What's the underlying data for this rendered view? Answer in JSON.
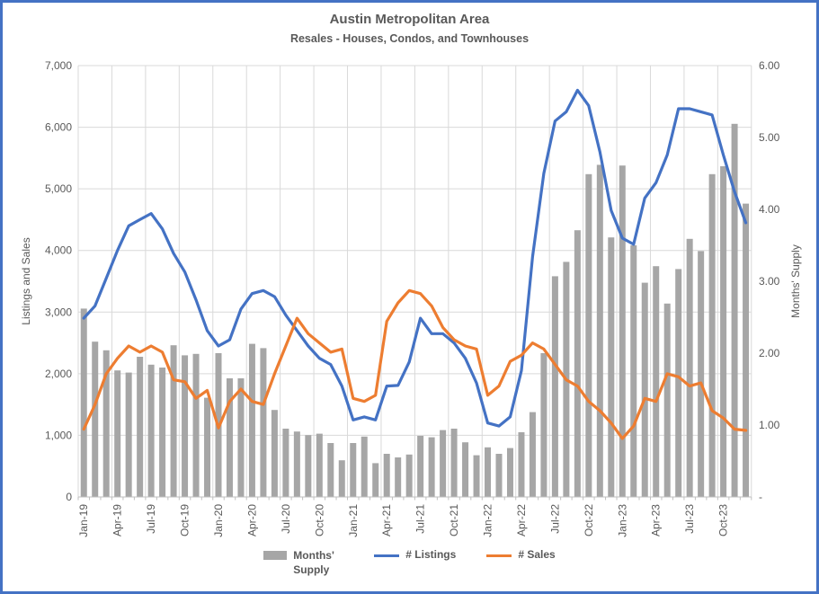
{
  "title": "Austin Metropolitan Area",
  "subtitle": "Resales - Houses, Condos, and Townhouses",
  "legend": {
    "months_supply": "Months' Supply",
    "listings": "# Listings",
    "sales": "# Sales"
  },
  "colors": {
    "bars": "#A6A6A6",
    "listings_line": "#4472C4",
    "sales_line": "#ED7D31",
    "grid": "#D9D9D9",
    "axis_line": "#BFBFBF",
    "text": "#595959",
    "frame_border": "#4472C4"
  },
  "chart_data": {
    "type": "combo bar + line, dual axis",
    "title": "Austin Metropolitan Area",
    "subtitle": "Resales - Houses, Condos, and Townhouses",
    "xlabel": "",
    "left_axis": {
      "label": "Listings and Sales",
      "range": [
        0,
        7000
      ],
      "tick_step": 1000
    },
    "right_axis": {
      "label": "Months' Supply",
      "range": [
        0,
        6
      ],
      "tick_step": 1
    },
    "left_axis_tick_labels": [
      "0",
      "1,000",
      "2,000",
      "3,000",
      "4,000",
      "5,000",
      "6,000",
      "7,000"
    ],
    "right_axis_tick_labels": [
      "-",
      "1.00",
      "2.00",
      "3.00",
      "4.00",
      "5.00",
      "6.00"
    ],
    "grid": true,
    "legend_position": "bottom",
    "months": [
      "Jan-19",
      "Feb-19",
      "Mar-19",
      "Apr-19",
      "May-19",
      "Jun-19",
      "Jul-19",
      "Aug-19",
      "Sep-19",
      "Oct-19",
      "Nov-19",
      "Dec-19",
      "Jan-20",
      "Feb-20",
      "Mar-20",
      "Apr-20",
      "May-20",
      "Jun-20",
      "Jul-20",
      "Aug-20",
      "Sep-20",
      "Oct-20",
      "Nov-20",
      "Dec-20",
      "Jan-21",
      "Feb-21",
      "Mar-21",
      "Apr-21",
      "May-21",
      "Jun-21",
      "Jul-21",
      "Aug-21",
      "Sep-21",
      "Oct-21",
      "Nov-21",
      "Dec-21",
      "Jan-22",
      "Feb-22",
      "Mar-22",
      "Apr-22",
      "May-22",
      "Jun-22",
      "Jul-22",
      "Aug-22",
      "Sep-22",
      "Oct-22",
      "Nov-22",
      "Dec-22",
      "Jan-23",
      "Feb-23",
      "Mar-23",
      "Apr-23",
      "May-23",
      "Jun-23",
      "Jul-23",
      "Aug-23",
      "Sep-23",
      "Oct-23",
      "Nov-23",
      "Dec-23"
    ],
    "x_tick_labels": [
      "Jan-19",
      "Apr-19",
      "Jul-19",
      "Oct-19",
      "Jan-20",
      "Apr-20",
      "Jul-20",
      "Oct-20",
      "Jan-21",
      "Apr-21",
      "Jul-21",
      "Oct-21",
      "Jan-22",
      "Apr-22",
      "Jul-22",
      "Oct-22",
      "Jan-23",
      "Apr-23",
      "Jul-23",
      "Oct-23"
    ],
    "series": [
      {
        "name": "Months' Supply",
        "type": "bar",
        "axis": "right",
        "values": [
          2.62,
          2.16,
          2.04,
          1.76,
          1.73,
          1.95,
          1.84,
          1.8,
          2.11,
          1.97,
          1.99,
          1.38,
          2.0,
          1.65,
          1.65,
          2.13,
          2.07,
          1.21,
          0.95,
          0.91,
          0.86,
          0.88,
          0.75,
          0.51,
          0.75,
          0.84,
          0.47,
          0.6,
          0.55,
          0.59,
          0.85,
          0.83,
          0.93,
          0.95,
          0.76,
          0.58,
          0.69,
          0.6,
          0.68,
          0.9,
          1.18,
          2.0,
          3.07,
          3.27,
          3.71,
          4.49,
          4.62,
          3.61,
          4.61,
          3.5,
          2.98,
          3.21,
          2.69,
          3.17,
          3.59,
          3.42,
          4.49,
          4.6,
          5.19,
          4.08
        ]
      },
      {
        "name": "# Listings",
        "type": "line",
        "axis": "left",
        "values": [
          2900,
          3100,
          3550,
          4000,
          4400,
          4500,
          4600,
          4350,
          3950,
          3650,
          3200,
          2700,
          2450,
          2550,
          3050,
          3300,
          3350,
          3250,
          2950,
          2700,
          2450,
          2250,
          2150,
          1800,
          1250,
          1300,
          1250,
          1800,
          1810,
          2190,
          2900,
          2650,
          2650,
          2500,
          2250,
          1850,
          1200,
          1150,
          1300,
          2050,
          3900,
          5250,
          6100,
          6250,
          6600,
          6350,
          5600,
          4650,
          4200,
          4100,
          4850,
          5100,
          5550,
          6300,
          6300,
          6250,
          6200,
          5550,
          4950,
          4450
        ]
      },
      {
        "name": "# Sales",
        "type": "line",
        "axis": "left",
        "values": [
          1100,
          1500,
          2000,
          2250,
          2450,
          2350,
          2450,
          2350,
          1900,
          1870,
          1600,
          1730,
          1120,
          1550,
          1750,
          1550,
          1500,
          2000,
          2450,
          2900,
          2650,
          2500,
          2350,
          2400,
          1600,
          1550,
          1650,
          2850,
          3150,
          3350,
          3300,
          3100,
          2750,
          2550,
          2450,
          2400,
          1650,
          1800,
          2200,
          2300,
          2500,
          2400,
          2150,
          1900,
          1800,
          1550,
          1400,
          1200,
          950,
          1150,
          1600,
          1550,
          2000,
          1950,
          1800,
          1850,
          1400,
          1280,
          1100,
          1080
        ]
      }
    ]
  }
}
